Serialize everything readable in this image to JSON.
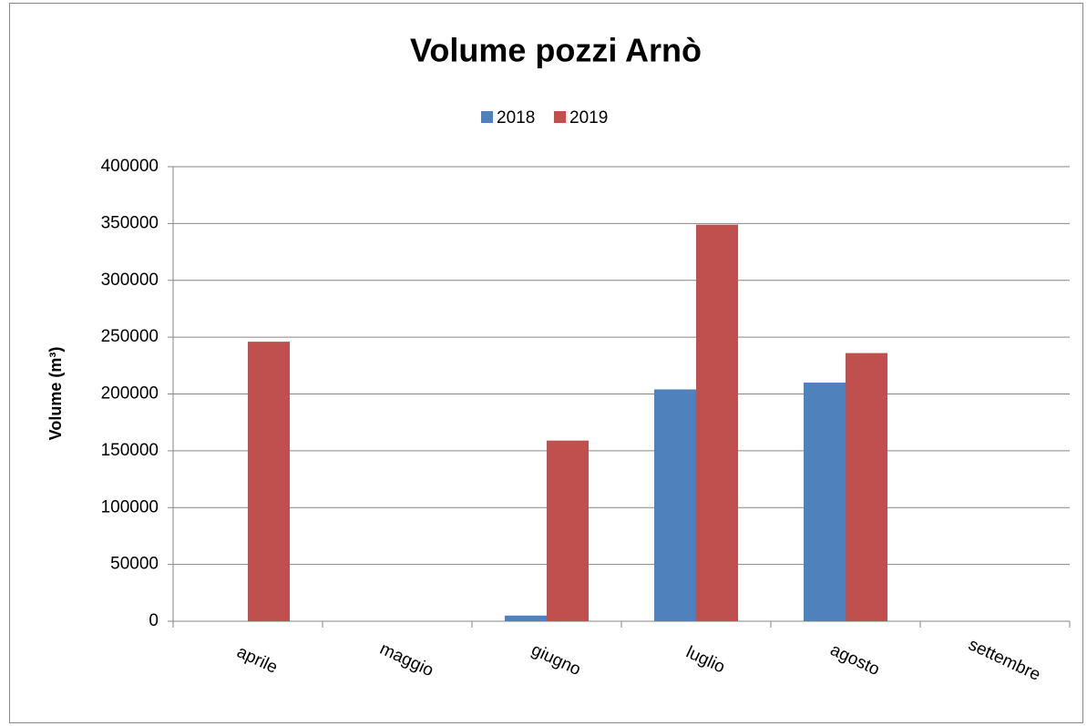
{
  "chart_data": {
    "type": "bar",
    "title": "Volume pozzi Arnò",
    "y_label": "Volume (m³)",
    "categories": [
      "aprile",
      "maggio",
      "giugno",
      "luglio",
      "agosto",
      "settembre"
    ],
    "series": [
      {
        "name": "2018",
        "color": "#4f81bd",
        "values": [
          null,
          null,
          5000,
          204000,
          210000,
          null
        ]
      },
      {
        "name": "2019",
        "color": "#c0504d",
        "values": [
          246000,
          null,
          159000,
          349000,
          236000,
          null
        ]
      }
    ],
    "ylim": [
      0,
      400000
    ],
    "yticks": [
      0,
      50000,
      100000,
      150000,
      200000,
      250000,
      300000,
      350000,
      400000
    ],
    "grid": true,
    "legend": "top"
  }
}
